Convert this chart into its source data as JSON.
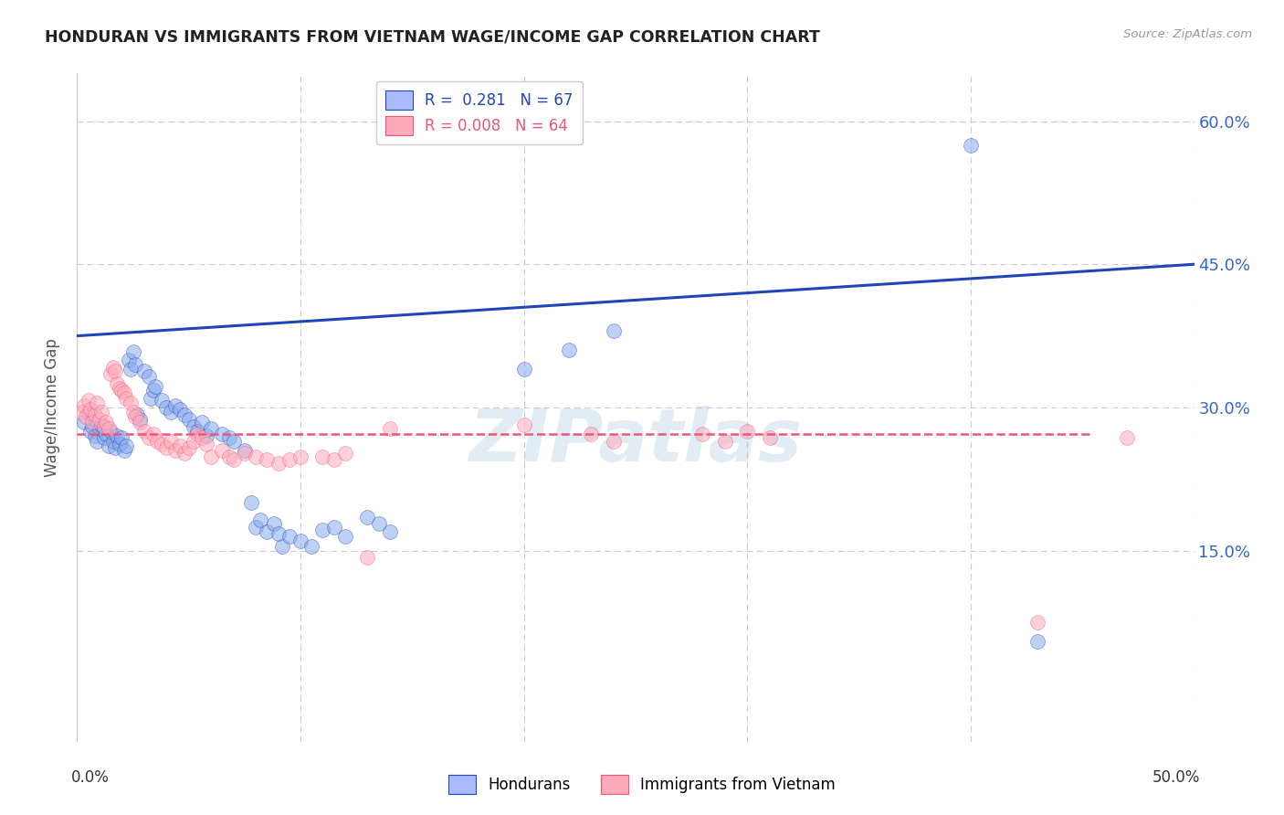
{
  "title": "HONDURAN VS IMMIGRANTS FROM VIETNAM WAGE/INCOME GAP CORRELATION CHART",
  "source": "Source: ZipAtlas.com",
  "ylabel": "Wage/Income Gap",
  "legend1_text": "R =  0.281   N = 67",
  "legend2_text": "R = 0.008   N = 64",
  "legend1_facecolor": "#aabbff",
  "legend2_facecolor": "#ffaabb",
  "blue_dot_color": "#88aaee",
  "pink_dot_color": "#ffaabb",
  "blue_line_color": "#2244bb",
  "pink_line_color": "#ee5577",
  "watermark": "ZIPatlas",
  "blue_scatter": [
    [
      0.003,
      0.285
    ],
    [
      0.005,
      0.295
    ],
    [
      0.006,
      0.275
    ],
    [
      0.007,
      0.28
    ],
    [
      0.008,
      0.27
    ],
    [
      0.009,
      0.265
    ],
    [
      0.01,
      0.278
    ],
    [
      0.011,
      0.282
    ],
    [
      0.012,
      0.268
    ],
    [
      0.013,
      0.272
    ],
    [
      0.014,
      0.26
    ],
    [
      0.015,
      0.275
    ],
    [
      0.016,
      0.265
    ],
    [
      0.017,
      0.258
    ],
    [
      0.018,
      0.27
    ],
    [
      0.019,
      0.262
    ],
    [
      0.02,
      0.268
    ],
    [
      0.021,
      0.255
    ],
    [
      0.022,
      0.26
    ],
    [
      0.023,
      0.35
    ],
    [
      0.024,
      0.34
    ],
    [
      0.025,
      0.358
    ],
    [
      0.026,
      0.345
    ],
    [
      0.027,
      0.292
    ],
    [
      0.028,
      0.288
    ],
    [
      0.03,
      0.338
    ],
    [
      0.032,
      0.333
    ],
    [
      0.033,
      0.31
    ],
    [
      0.034,
      0.318
    ],
    [
      0.035,
      0.322
    ],
    [
      0.038,
      0.308
    ],
    [
      0.04,
      0.3
    ],
    [
      0.042,
      0.295
    ],
    [
      0.044,
      0.302
    ],
    [
      0.046,
      0.298
    ],
    [
      0.048,
      0.292
    ],
    [
      0.05,
      0.288
    ],
    [
      0.052,
      0.28
    ],
    [
      0.054,
      0.275
    ],
    [
      0.056,
      0.285
    ],
    [
      0.058,
      0.27
    ],
    [
      0.06,
      0.278
    ],
    [
      0.065,
      0.272
    ],
    [
      0.068,
      0.268
    ],
    [
      0.07,
      0.265
    ],
    [
      0.075,
      0.255
    ],
    [
      0.078,
      0.2
    ],
    [
      0.08,
      0.175
    ],
    [
      0.082,
      0.182
    ],
    [
      0.085,
      0.17
    ],
    [
      0.088,
      0.178
    ],
    [
      0.09,
      0.168
    ],
    [
      0.092,
      0.155
    ],
    [
      0.095,
      0.165
    ],
    [
      0.1,
      0.16
    ],
    [
      0.105,
      0.155
    ],
    [
      0.11,
      0.172
    ],
    [
      0.115,
      0.175
    ],
    [
      0.12,
      0.165
    ],
    [
      0.13,
      0.185
    ],
    [
      0.135,
      0.178
    ],
    [
      0.14,
      0.17
    ],
    [
      0.2,
      0.34
    ],
    [
      0.22,
      0.36
    ],
    [
      0.24,
      0.38
    ],
    [
      0.4,
      0.575
    ],
    [
      0.43,
      0.055
    ]
  ],
  "pink_scatter": [
    [
      0.002,
      0.295
    ],
    [
      0.003,
      0.302
    ],
    [
      0.004,
      0.29
    ],
    [
      0.005,
      0.308
    ],
    [
      0.006,
      0.298
    ],
    [
      0.007,
      0.285
    ],
    [
      0.008,
      0.292
    ],
    [
      0.009,
      0.305
    ],
    [
      0.01,
      0.288
    ],
    [
      0.011,
      0.295
    ],
    [
      0.012,
      0.28
    ],
    [
      0.013,
      0.285
    ],
    [
      0.014,
      0.278
    ],
    [
      0.015,
      0.335
    ],
    [
      0.016,
      0.342
    ],
    [
      0.017,
      0.338
    ],
    [
      0.018,
      0.325
    ],
    [
      0.019,
      0.32
    ],
    [
      0.02,
      0.318
    ],
    [
      0.021,
      0.315
    ],
    [
      0.022,
      0.31
    ],
    [
      0.024,
      0.305
    ],
    [
      0.025,
      0.295
    ],
    [
      0.026,
      0.29
    ],
    [
      0.028,
      0.285
    ],
    [
      0.03,
      0.275
    ],
    [
      0.032,
      0.268
    ],
    [
      0.034,
      0.272
    ],
    [
      0.036,
      0.265
    ],
    [
      0.038,
      0.262
    ],
    [
      0.04,
      0.258
    ],
    [
      0.042,
      0.265
    ],
    [
      0.044,
      0.255
    ],
    [
      0.046,
      0.26
    ],
    [
      0.048,
      0.252
    ],
    [
      0.05,
      0.258
    ],
    [
      0.052,
      0.265
    ],
    [
      0.054,
      0.272
    ],
    [
      0.056,
      0.268
    ],
    [
      0.058,
      0.262
    ],
    [
      0.06,
      0.248
    ],
    [
      0.065,
      0.255
    ],
    [
      0.068,
      0.248
    ],
    [
      0.07,
      0.245
    ],
    [
      0.075,
      0.252
    ],
    [
      0.08,
      0.248
    ],
    [
      0.085,
      0.245
    ],
    [
      0.09,
      0.242
    ],
    [
      0.095,
      0.245
    ],
    [
      0.1,
      0.248
    ],
    [
      0.11,
      0.248
    ],
    [
      0.115,
      0.245
    ],
    [
      0.12,
      0.252
    ],
    [
      0.13,
      0.143
    ],
    [
      0.14,
      0.278
    ],
    [
      0.2,
      0.282
    ],
    [
      0.23,
      0.272
    ],
    [
      0.24,
      0.265
    ],
    [
      0.28,
      0.272
    ],
    [
      0.29,
      0.265
    ],
    [
      0.3,
      0.275
    ],
    [
      0.31,
      0.268
    ],
    [
      0.43,
      0.075
    ],
    [
      0.47,
      0.268
    ]
  ],
  "blue_line_x": [
    0.0,
    0.5
  ],
  "blue_line_y": [
    0.375,
    0.45
  ],
  "pink_line_x": [
    0.0,
    0.455
  ],
  "pink_line_y": [
    0.272,
    0.272
  ],
  "xlim": [
    0.0,
    0.5
  ],
  "ylim": [
    -0.05,
    0.65
  ],
  "y_ticks": [
    0.15,
    0.3,
    0.45,
    0.6
  ],
  "y_tick_labels": [
    "15.0%",
    "30.0%",
    "45.0%",
    "60.0%"
  ],
  "background_color": "#ffffff",
  "grid_color": "#cccccc",
  "title_color": "#222222",
  "right_axis_label_color": "#3366cc",
  "marker_size": 130,
  "marker_alpha": 0.55,
  "bottom_legend_labels": [
    "Hondurans",
    "Immigrants from Vietnam"
  ]
}
